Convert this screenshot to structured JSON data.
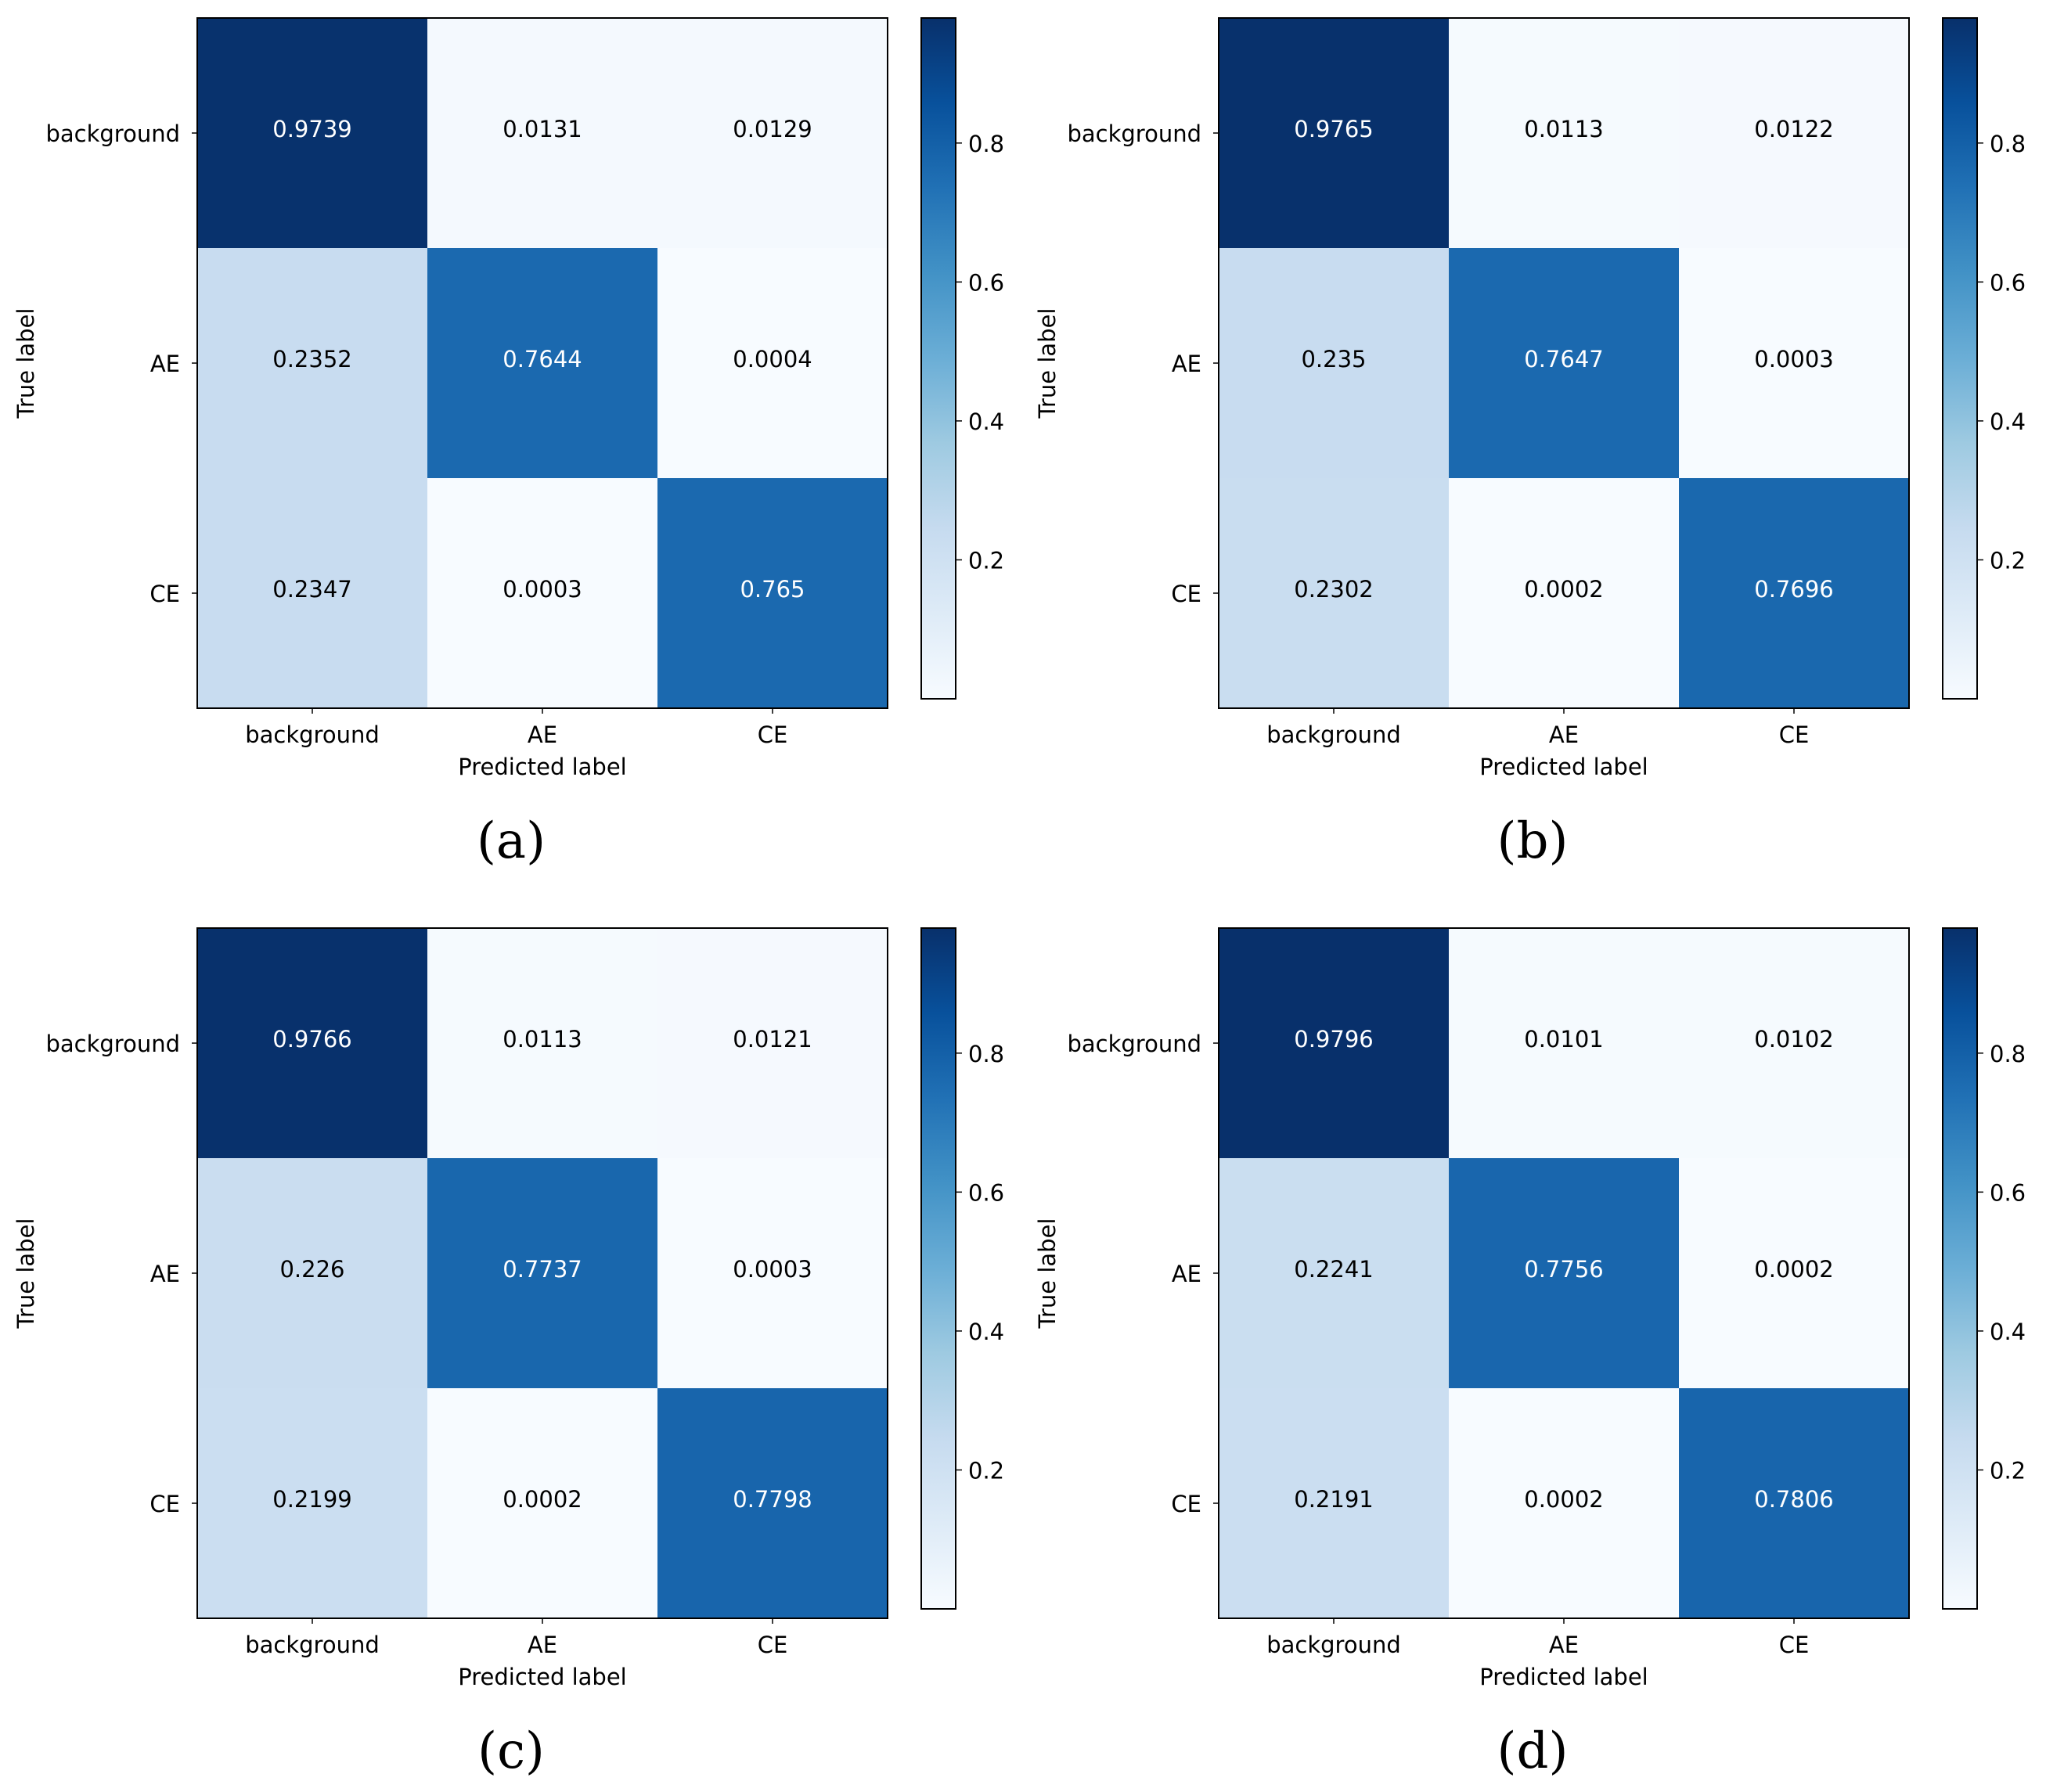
{
  "figure": {
    "panel_captions": [
      "(a)",
      "(b)",
      "(c)",
      "(d)"
    ]
  },
  "chart_data": [
    {
      "type": "heatmap",
      "panel": "(a)",
      "title": "",
      "xlabel": "Predicted label",
      "ylabel": "True label",
      "x_categories": [
        "background",
        "AE",
        "CE"
      ],
      "y_categories": [
        "background",
        "AE",
        "CE"
      ],
      "matrix": [
        [
          0.9739,
          0.0131,
          0.0129
        ],
        [
          0.2352,
          0.7644,
          0.0004
        ],
        [
          0.2347,
          0.0003,
          0.765
        ]
      ],
      "colorbar_ticks": [
        0.2,
        0.4,
        0.6,
        0.8
      ],
      "colorbar_range": [
        0,
        0.98
      ],
      "colormap": "Blues"
    },
    {
      "type": "heatmap",
      "panel": "(b)",
      "title": "",
      "xlabel": "Predicted label",
      "ylabel": "True label",
      "x_categories": [
        "background",
        "AE",
        "CE"
      ],
      "y_categories": [
        "background",
        "AE",
        "CE"
      ],
      "matrix": [
        [
          0.9765,
          0.0113,
          0.0122
        ],
        [
          0.235,
          0.7647,
          0.0003
        ],
        [
          0.2302,
          0.0002,
          0.7696
        ]
      ],
      "colorbar_ticks": [
        0.2,
        0.4,
        0.6,
        0.8
      ],
      "colorbar_range": [
        0,
        0.98
      ],
      "colormap": "Blues"
    },
    {
      "type": "heatmap",
      "panel": "(c)",
      "title": "",
      "xlabel": "Predicted label",
      "ylabel": "True label",
      "x_categories": [
        "background",
        "AE",
        "CE"
      ],
      "y_categories": [
        "background",
        "AE",
        "CE"
      ],
      "matrix": [
        [
          0.9766,
          0.0113,
          0.0121
        ],
        [
          0.226,
          0.7737,
          0.0003
        ],
        [
          0.2199,
          0.0002,
          0.7798
        ]
      ],
      "colorbar_ticks": [
        0.2,
        0.4,
        0.6,
        0.8
      ],
      "colorbar_range": [
        0,
        0.98
      ],
      "colormap": "Blues"
    },
    {
      "type": "heatmap",
      "panel": "(d)",
      "title": "",
      "xlabel": "Predicted label",
      "ylabel": "True label",
      "x_categories": [
        "background",
        "AE",
        "CE"
      ],
      "y_categories": [
        "background",
        "AE",
        "CE"
      ],
      "matrix": [
        [
          0.9796,
          0.0101,
          0.0102
        ],
        [
          0.2241,
          0.7756,
          0.0002
        ],
        [
          0.2191,
          0.0002,
          0.7806
        ]
      ],
      "colorbar_ticks": [
        0.2,
        0.4,
        0.6,
        0.8
      ],
      "colorbar_range": [
        0,
        0.98
      ],
      "colormap": "Blues"
    }
  ]
}
